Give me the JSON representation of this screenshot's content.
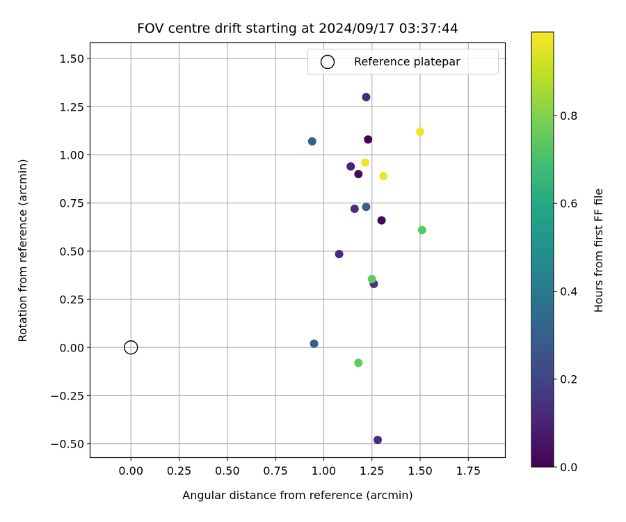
{
  "chart_data": {
    "type": "scatter",
    "title": "FOV centre drift starting at 2024/09/17 03:37:44",
    "xlabel": "Angular distance from reference (arcmin)",
    "ylabel": "Rotation from reference (arcmin)",
    "xlim": [
      -0.21,
      1.94
    ],
    "ylim": [
      -0.57,
      1.58
    ],
    "xticks": [
      0.0,
      0.25,
      0.5,
      0.75,
      1.0,
      1.25,
      1.5,
      1.75
    ],
    "xtick_labels": [
      "0.00",
      "0.25",
      "0.50",
      "0.75",
      "1.00",
      "1.25",
      "1.50",
      "1.75"
    ],
    "yticks": [
      -0.5,
      -0.25,
      0.0,
      0.25,
      0.5,
      0.75,
      1.0,
      1.25,
      1.5
    ],
    "ytick_labels": [
      "−0.50",
      "−0.25",
      "0.00",
      "0.25",
      "0.50",
      "0.75",
      "1.00",
      "1.25",
      "1.50"
    ],
    "grid": true,
    "legend": {
      "placement": "top-right",
      "entries": [
        "Reference platepar"
      ]
    },
    "reference_point": {
      "name": "Reference platepar",
      "x": 0.0,
      "y": 0.0,
      "marker": "open-circle"
    },
    "colorbar": {
      "label": "Hours from first FF file",
      "colormap": "viridis",
      "range": [
        0.0,
        0.99
      ],
      "ticks": [
        0.0,
        0.2,
        0.4,
        0.6,
        0.8
      ],
      "tick_labels": [
        "0.0",
        "0.2",
        "0.4",
        "0.6",
        "0.8"
      ]
    },
    "points": [
      {
        "x": 1.23,
        "y": 1.08,
        "hours": 0.0
      },
      {
        "x": 1.18,
        "y": 0.9,
        "hours": 0.03
      },
      {
        "x": 1.3,
        "y": 0.66,
        "hours": 0.02
      },
      {
        "x": 1.14,
        "y": 0.94,
        "hours": 0.1
      },
      {
        "x": 1.08,
        "y": 0.485,
        "hours": 0.12
      },
      {
        "x": 1.22,
        "y": 1.3,
        "hours": 0.13
      },
      {
        "x": 1.16,
        "y": 0.72,
        "hours": 0.14
      },
      {
        "x": 1.26,
        "y": 0.33,
        "hours": 0.14
      },
      {
        "x": 1.28,
        "y": -0.48,
        "hours": 0.13
      },
      {
        "x": 0.94,
        "y": 1.07,
        "hours": 0.3
      },
      {
        "x": 1.22,
        "y": 0.73,
        "hours": 0.3
      },
      {
        "x": 0.95,
        "y": 0.02,
        "hours": 0.3
      },
      {
        "x": 1.51,
        "y": 0.61,
        "hours": 0.73
      },
      {
        "x": 1.25,
        "y": 0.355,
        "hours": 0.75
      },
      {
        "x": 1.18,
        "y": -0.08,
        "hours": 0.74
      },
      {
        "x": 1.5,
        "y": 1.12,
        "hours": 0.97
      },
      {
        "x": 1.215,
        "y": 0.96,
        "hours": 0.97
      },
      {
        "x": 1.31,
        "y": 0.89,
        "hours": 0.97
      }
    ]
  }
}
